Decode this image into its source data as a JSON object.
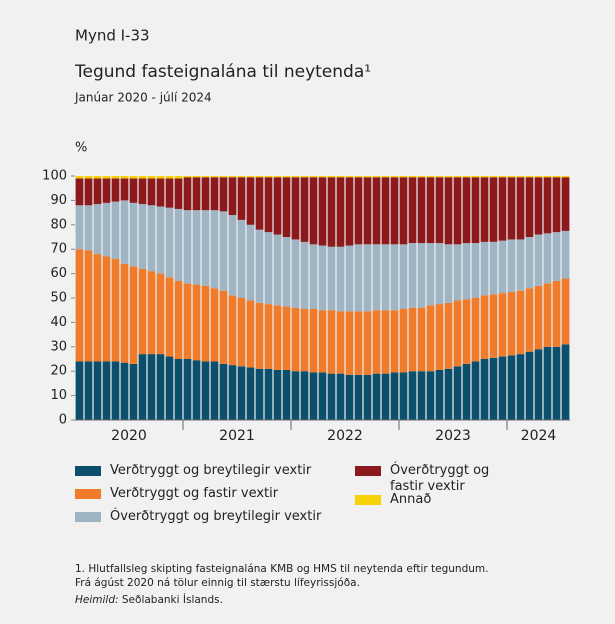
{
  "figure_label": "Mynd I-33",
  "chart_data": {
    "type": "stacked_bar",
    "title": "Tegund fasteignalána til neytenda¹",
    "subtitle": "Janúar 2020 - júlí 2024",
    "ylabel": "%",
    "categories": [
      "2020",
      null,
      null,
      null,
      null,
      null,
      null,
      null,
      null,
      null,
      null,
      null,
      "2021",
      null,
      null,
      null,
      null,
      null,
      null,
      null,
      null,
      null,
      null,
      null,
      "2022",
      null,
      null,
      null,
      null,
      null,
      null,
      null,
      null,
      null,
      null,
      null,
      "2023",
      null,
      null,
      null,
      null,
      null,
      null,
      null,
      null,
      null,
      null,
      null,
      "2024",
      null,
      null,
      null,
      null,
      null,
      null
    ],
    "ylim": [
      0,
      100
    ],
    "yticks": [
      0,
      10,
      20,
      30,
      40,
      50,
      60,
      70,
      80,
      90,
      100
    ],
    "series": [
      {
        "name": "Verðtryggt og breytilegir vextir",
        "color": "#0b4f6c",
        "values": [
          24,
          24,
          24,
          24,
          24,
          23.5,
          23,
          27,
          27,
          27,
          26,
          25,
          25,
          24.5,
          24,
          24,
          23,
          22.5,
          22,
          21.5,
          21,
          21,
          20.5,
          20.5,
          20,
          20,
          19.5,
          19.5,
          19,
          19,
          18.5,
          18.5,
          18.5,
          19,
          19,
          19.5,
          19.5,
          20,
          20,
          20,
          20.5,
          21,
          22,
          23,
          24,
          25,
          25.5,
          26,
          26.5,
          27,
          28,
          29,
          30,
          30,
          31
        ]
      },
      {
        "name": "Verðtryggt og fastir vextir",
        "color": "#f07b2b",
        "values": [
          46,
          45.5,
          44,
          43,
          42,
          40.5,
          40,
          35,
          34,
          33,
          32.5,
          32,
          31,
          31,
          31,
          30,
          30,
          28.5,
          28,
          27.5,
          27,
          26.5,
          26.5,
          26,
          26,
          25.5,
          26,
          25.5,
          26,
          25.5,
          26,
          26,
          26,
          26,
          26,
          25.5,
          26,
          26,
          26,
          27,
          27,
          27,
          27,
          26.5,
          26,
          26,
          26,
          26,
          26,
          26,
          26,
          26,
          26,
          27,
          27
        ]
      },
      {
        "name": "Óverðtryggt og breytilegir vextir",
        "color": "#9fb5c4",
        "values": [
          18,
          18.5,
          20.5,
          22,
          23.5,
          26,
          26,
          26.5,
          27,
          27.5,
          28.5,
          29.5,
          30,
          30.5,
          31,
          32,
          32.5,
          33,
          32,
          31,
          30,
          29.5,
          29,
          28.5,
          28,
          27.5,
          26.5,
          26.5,
          26,
          26.5,
          27,
          27.5,
          27.5,
          27,
          27,
          27,
          26.5,
          26.5,
          26.5,
          25.5,
          25,
          24,
          23,
          23,
          22.5,
          22,
          21.5,
          21.5,
          21.5,
          21,
          21,
          21,
          20.5,
          20,
          19.5
        ]
      },
      {
        "name": "Óverðtryggt og fastir vextir",
        "color": "#8c1a1d",
        "values": [
          11,
          11,
          10.5,
          10,
          9.5,
          9,
          10,
          10.5,
          11,
          11.5,
          12,
          12.5,
          13.5,
          13.5,
          13.5,
          13.5,
          14,
          15.5,
          17.5,
          19.5,
          21.5,
          22.5,
          23.5,
          24.5,
          25.5,
          26.5,
          27.5,
          28,
          28.5,
          28.5,
          28,
          27.5,
          27.5,
          27.5,
          27.5,
          27.5,
          27.5,
          27,
          27,
          27,
          27,
          27.5,
          27.5,
          27,
          27,
          26.5,
          26.5,
          26,
          25.5,
          25.5,
          24.5,
          23.5,
          23,
          22.5,
          22
        ]
      },
      {
        "name": "Annað",
        "color": "#f5d10a",
        "values": [
          1,
          1,
          1,
          1,
          1,
          1,
          1,
          1,
          1,
          1,
          1,
          1,
          0.5,
          0.5,
          0.5,
          0.5,
          0.5,
          0.5,
          0.5,
          0.5,
          0.5,
          0.5,
          0.5,
          0.5,
          0.5,
          0.5,
          0.5,
          0.5,
          0.5,
          0.5,
          0.5,
          0.5,
          0.5,
          0.5,
          0.5,
          0.5,
          0.5,
          0.5,
          0.5,
          0.5,
          0.5,
          0.5,
          0.5,
          0.5,
          0.5,
          0.5,
          0.5,
          0.5,
          0.5,
          0.5,
          0.5,
          0.5,
          0.5,
          0.5,
          0.5
        ]
      }
    ]
  },
  "footnote": [
    "1. Hlutfallsleg skipting fasteignalána KMB og HMS til neytenda eftir tegundum.",
    "Frá ágúst 2020 ná tölur einnig til stærstu lífeyrissjóða."
  ],
  "source": {
    "label": "Heimild:",
    "text": "Seðlabanki Íslands."
  }
}
